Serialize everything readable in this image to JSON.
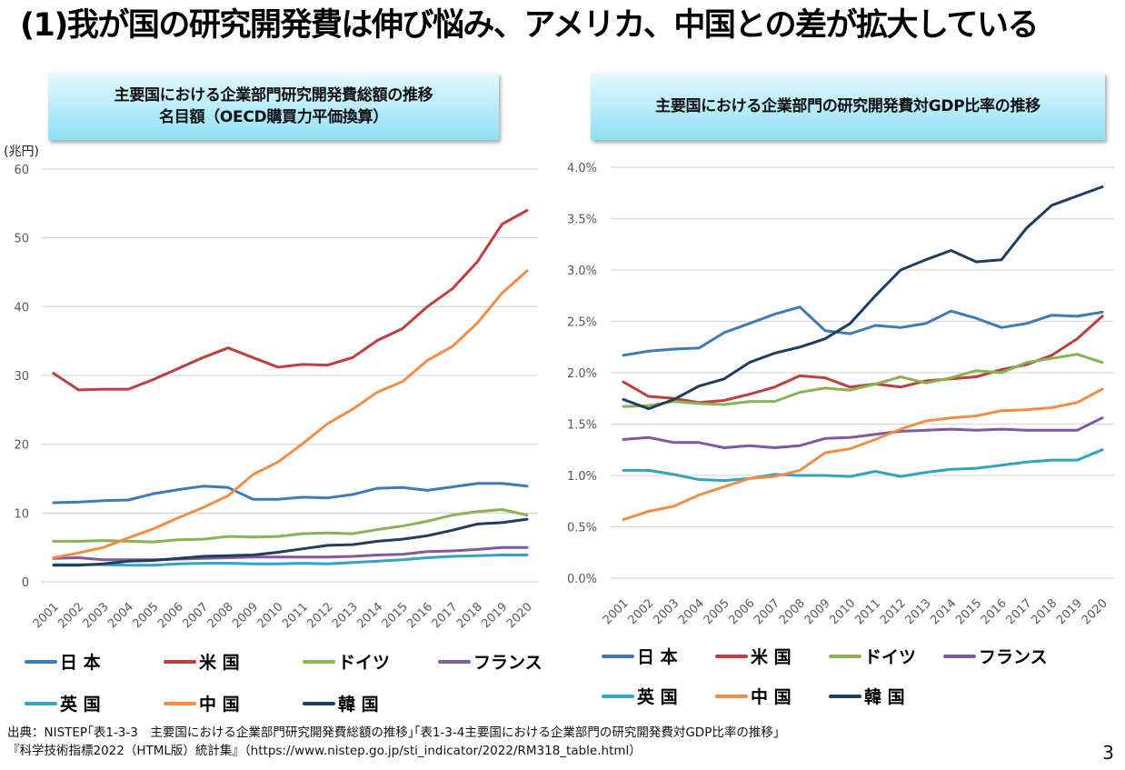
{
  "page": {
    "title": "(1)我が国の研究開発費は伸び悩み、アメリカ、中国との差が拡大している",
    "page_number": "3",
    "source_line1": "出典：NISTEP｢表1-3-3　主要国における企業部門研究開発費総額の推移｣｢表1-3-4主要国における企業部門の研究開発費対GDP比率の推移｣",
    "source_line2": "『科学技術指標2022（HTML版）統計集』（https://www.nistep.go.jp/sti_indicator/2022/RM318_table.html）"
  },
  "legend": [
    {
      "label": "日 本",
      "color": "#3f7ab8"
    },
    {
      "label": "米 国",
      "color": "#bf3e3f"
    },
    {
      "label": "ドイツ",
      "color": "#8db255"
    },
    {
      "label": "フランス",
      "color": "#7f5a9e"
    },
    {
      "label": "英 国",
      "color": "#32a4bf"
    },
    {
      "label": "中 国",
      "color": "#f58c45"
    },
    {
      "label": "韓 国",
      "color": "#203d5e"
    }
  ],
  "chart_data": [
    {
      "type": "line",
      "title": "主要国における企業部門研究開発費総額の推移",
      "subtitle": "名目額（OECD購買力平価換算）",
      "xlabel": "",
      "ylabel": "(兆円)",
      "ylim": [
        0,
        60
      ],
      "yticks": [
        0,
        10,
        20,
        30,
        40,
        50,
        60
      ],
      "ytick_labels": [
        "0",
        "10",
        "20",
        "30",
        "40",
        "50",
        "60"
      ],
      "grid": true,
      "legend_position": "bottom",
      "x": [
        "2001",
        "2002",
        "2003",
        "2004",
        "2005",
        "2006",
        "2007",
        "2008",
        "2009",
        "2010",
        "2011",
        "2012",
        "2013",
        "2014",
        "2015",
        "2016",
        "2017",
        "2018",
        "2019",
        "2020"
      ],
      "series": [
        {
          "name": "日 本",
          "color": "#3f7ab8",
          "values": [
            11.5,
            11.6,
            11.8,
            11.9,
            12.8,
            13.4,
            13.9,
            13.7,
            12.0,
            12.0,
            12.3,
            12.2,
            12.7,
            13.6,
            13.7,
            13.3,
            13.8,
            14.3,
            14.3,
            13.9
          ]
        },
        {
          "name": "米 国",
          "color": "#bf3e3f",
          "values": [
            30.3,
            27.9,
            28.0,
            28.0,
            29.4,
            31.0,
            32.6,
            34.0,
            32.6,
            31.2,
            31.6,
            31.5,
            32.6,
            35.1,
            36.8,
            40.0,
            42.6,
            46.5,
            52.0,
            54.0
          ]
        },
        {
          "name": "ドイツ",
          "color": "#8db255",
          "values": [
            5.9,
            5.9,
            6.0,
            5.9,
            5.8,
            6.1,
            6.2,
            6.6,
            6.5,
            6.6,
            7.0,
            7.1,
            7.0,
            7.6,
            8.1,
            8.8,
            9.7,
            10.2,
            10.5,
            9.7
          ]
        },
        {
          "name": "フランス",
          "color": "#7f5a9e",
          "values": [
            3.4,
            3.5,
            3.2,
            3.2,
            3.2,
            3.3,
            3.4,
            3.5,
            3.6,
            3.6,
            3.6,
            3.6,
            3.7,
            3.9,
            4.0,
            4.4,
            4.5,
            4.7,
            5.0,
            5.0
          ]
        },
        {
          "name": "英 国",
          "color": "#32a4bf",
          "values": [
            2.5,
            2.5,
            2.5,
            2.4,
            2.4,
            2.6,
            2.7,
            2.7,
            2.6,
            2.6,
            2.7,
            2.6,
            2.8,
            3.0,
            3.2,
            3.5,
            3.7,
            3.8,
            3.9,
            3.9
          ]
        },
        {
          "name": "中 国",
          "color": "#f58c45",
          "values": [
            3.5,
            4.2,
            5.0,
            6.4,
            7.7,
            9.3,
            10.8,
            12.5,
            15.6,
            17.4,
            20.1,
            23.0,
            25.1,
            27.6,
            29.1,
            32.2,
            34.2,
            37.6,
            42.0,
            45.2
          ]
        },
        {
          "name": "韓 国",
          "color": "#203d5e",
          "values": [
            2.4,
            2.4,
            2.6,
            3.0,
            3.1,
            3.4,
            3.7,
            3.8,
            3.9,
            4.3,
            4.8,
            5.3,
            5.4,
            5.9,
            6.2,
            6.7,
            7.5,
            8.4,
            8.6,
            9.1
          ]
        }
      ]
    },
    {
      "type": "line",
      "title": "主要国における企業部門の研究開発費対GDP比率の推移",
      "xlabel": "",
      "ylabel": "",
      "ylim": [
        0,
        4.0
      ],
      "yticks": [
        0,
        0.5,
        1.0,
        1.5,
        2.0,
        2.5,
        3.0,
        3.5,
        4.0
      ],
      "ytick_labels": [
        "0.0%",
        "0.5%",
        "1.0%",
        "1.5%",
        "2.0%",
        "2.5%",
        "3.0%",
        "3.5%",
        "4.0%"
      ],
      "grid": true,
      "legend_position": "bottom",
      "x": [
        "2001",
        "2002",
        "2003",
        "2004",
        "2005",
        "2006",
        "2007",
        "2008",
        "2009",
        "2010",
        "2011",
        "2012",
        "2013",
        "2014",
        "2015",
        "2016",
        "2017",
        "2018",
        "2019",
        "2020"
      ],
      "series": [
        {
          "name": "日 本",
          "color": "#3f7ab8",
          "values": [
            2.17,
            2.21,
            2.23,
            2.24,
            2.39,
            2.48,
            2.57,
            2.64,
            2.41,
            2.38,
            2.46,
            2.44,
            2.48,
            2.6,
            2.53,
            2.44,
            2.48,
            2.56,
            2.55,
            2.59
          ]
        },
        {
          "name": "米 国",
          "color": "#bf3e3f",
          "values": [
            1.91,
            1.77,
            1.75,
            1.71,
            1.73,
            1.79,
            1.86,
            1.97,
            1.95,
            1.86,
            1.89,
            1.86,
            1.92,
            1.94,
            1.96,
            2.03,
            2.08,
            2.17,
            2.33,
            2.55
          ]
        },
        {
          "name": "ドイツ",
          "color": "#8db255",
          "values": [
            1.67,
            1.68,
            1.72,
            1.7,
            1.69,
            1.72,
            1.72,
            1.81,
            1.85,
            1.83,
            1.89,
            1.96,
            1.9,
            1.95,
            2.02,
            2.0,
            2.1,
            2.14,
            2.18,
            2.1
          ]
        },
        {
          "name": "フランス",
          "color": "#7f5a9e",
          "values": [
            1.35,
            1.37,
            1.32,
            1.32,
            1.27,
            1.29,
            1.27,
            1.29,
            1.36,
            1.37,
            1.4,
            1.43,
            1.44,
            1.45,
            1.44,
            1.45,
            1.44,
            1.44,
            1.44,
            1.56
          ]
        },
        {
          "name": "英 国",
          "color": "#32a4bf",
          "values": [
            1.05,
            1.05,
            1.01,
            0.96,
            0.95,
            0.97,
            1.01,
            1.0,
            1.0,
            0.99,
            1.04,
            0.99,
            1.03,
            1.06,
            1.07,
            1.1,
            1.13,
            1.15,
            1.15,
            1.25
          ]
        },
        {
          "name": "中 国",
          "color": "#f58c45",
          "values": [
            0.57,
            0.65,
            0.7,
            0.81,
            0.89,
            0.97,
            0.99,
            1.05,
            1.22,
            1.26,
            1.35,
            1.45,
            1.53,
            1.56,
            1.58,
            1.63,
            1.64,
            1.66,
            1.71,
            1.84
          ]
        },
        {
          "name": "韓 国",
          "color": "#203d5e",
          "values": [
            1.74,
            1.65,
            1.74,
            1.87,
            1.94,
            2.1,
            2.19,
            2.25,
            2.33,
            2.48,
            2.75,
            3.0,
            3.1,
            3.19,
            3.08,
            3.1,
            3.41,
            3.63,
            3.72,
            3.81
          ]
        }
      ]
    }
  ]
}
